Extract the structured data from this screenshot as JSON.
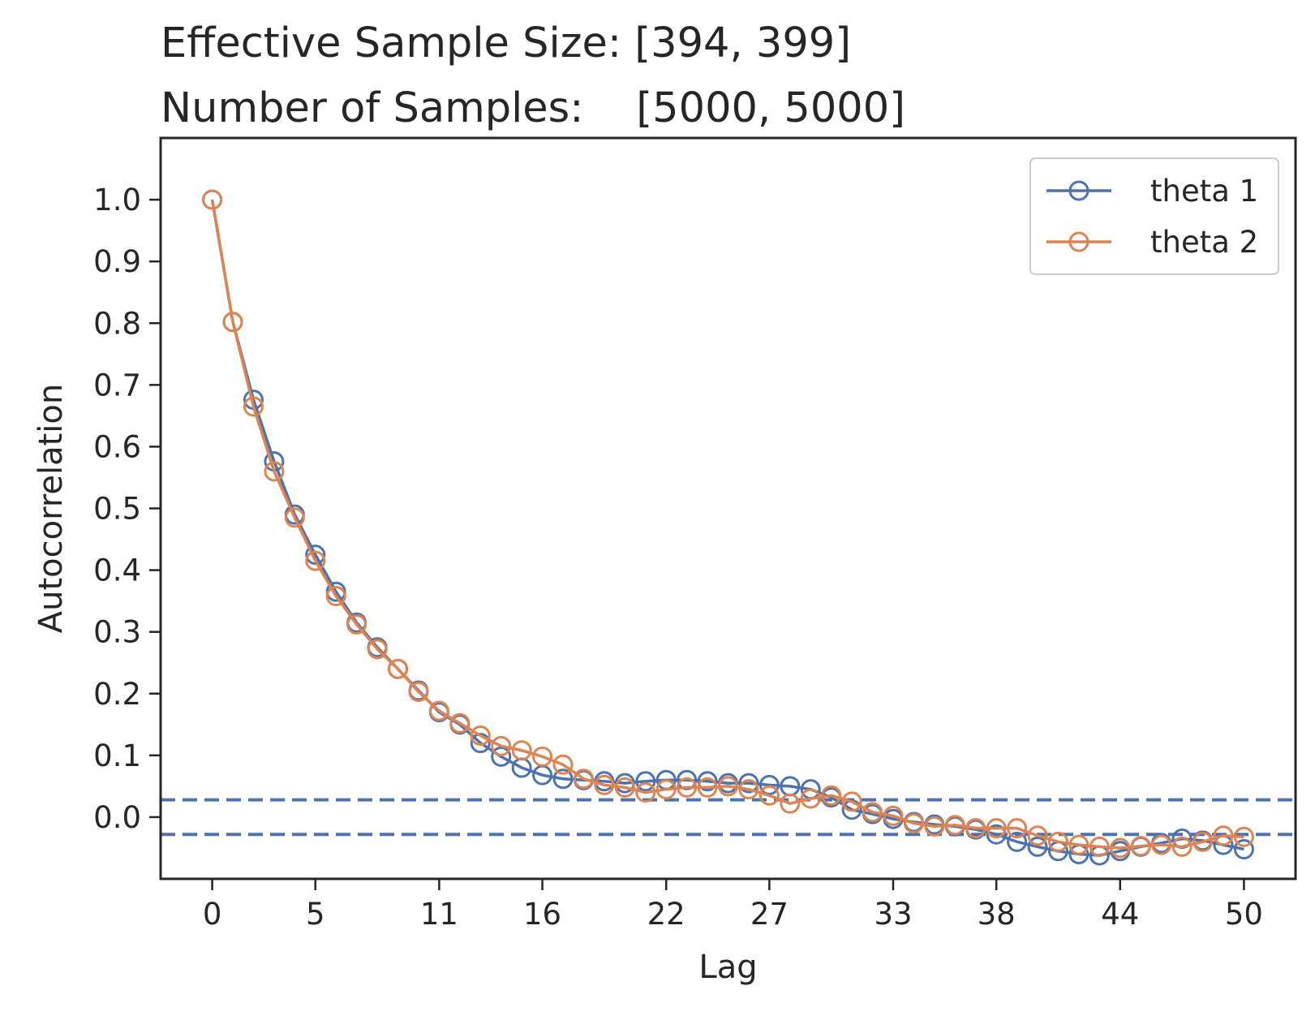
{
  "chart_data": {
    "type": "line",
    "title_lines": [
      "Effective Sample Size: [394, 399]",
      "Number of Samples:    [5000, 5000]"
    ],
    "xlabel": "Lag",
    "ylabel": "Autocorrelation",
    "xlim": [
      -2.5,
      52.5
    ],
    "ylim": [
      -0.1,
      1.1
    ],
    "x_ticks": [
      0,
      5,
      11,
      16,
      22,
      27,
      33,
      38,
      44,
      50
    ],
    "y_ticks": [
      0.0,
      0.1,
      0.2,
      0.3,
      0.4,
      0.5,
      0.6,
      0.7,
      0.8,
      0.9,
      1.0
    ],
    "grid": false,
    "legend_position": "top-right",
    "x": [
      0,
      1,
      2,
      3,
      4,
      5,
      6,
      7,
      8,
      9,
      10,
      11,
      12,
      13,
      14,
      15,
      16,
      17,
      18,
      19,
      20,
      21,
      22,
      23,
      24,
      25,
      26,
      27,
      28,
      29,
      30,
      31,
      32,
      33,
      34,
      35,
      36,
      37,
      38,
      39,
      40,
      41,
      42,
      43,
      44,
      45,
      46,
      47,
      48,
      49,
      50
    ],
    "series": [
      {
        "name": "theta 1",
        "color": "#4c72b0",
        "values": [
          1.0,
          0.802,
          0.676,
          0.576,
          0.49,
          0.425,
          0.365,
          0.315,
          0.275,
          0.24,
          0.205,
          0.17,
          0.15,
          0.12,
          0.098,
          0.08,
          0.068,
          0.062,
          0.06,
          0.058,
          0.055,
          0.058,
          0.06,
          0.06,
          0.058,
          0.055,
          0.055,
          0.052,
          0.05,
          0.045,
          0.032,
          0.012,
          0.005,
          -0.003,
          -0.008,
          -0.012,
          -0.015,
          -0.02,
          -0.028,
          -0.04,
          -0.048,
          -0.055,
          -0.06,
          -0.062,
          -0.055,
          -0.048,
          -0.042,
          -0.035,
          -0.038,
          -0.045,
          -0.052
        ]
      },
      {
        "name": "theta 2",
        "color": "#dd8452",
        "values": [
          1.0,
          0.802,
          0.665,
          0.56,
          0.485,
          0.415,
          0.358,
          0.312,
          0.272,
          0.24,
          0.203,
          0.172,
          0.152,
          0.132,
          0.115,
          0.108,
          0.098,
          0.085,
          0.062,
          0.052,
          0.048,
          0.04,
          0.045,
          0.048,
          0.048,
          0.05,
          0.045,
          0.035,
          0.022,
          0.03,
          0.035,
          0.025,
          0.008,
          0.002,
          -0.01,
          -0.015,
          -0.013,
          -0.018,
          -0.018,
          -0.018,
          -0.03,
          -0.04,
          -0.045,
          -0.048,
          -0.05,
          -0.047,
          -0.045,
          -0.048,
          -0.04,
          -0.03,
          -0.032
        ]
      }
    ],
    "reference_lines": {
      "color": "#4c72b0",
      "style": "dashed",
      "values": [
        0.028,
        -0.028
      ]
    }
  }
}
